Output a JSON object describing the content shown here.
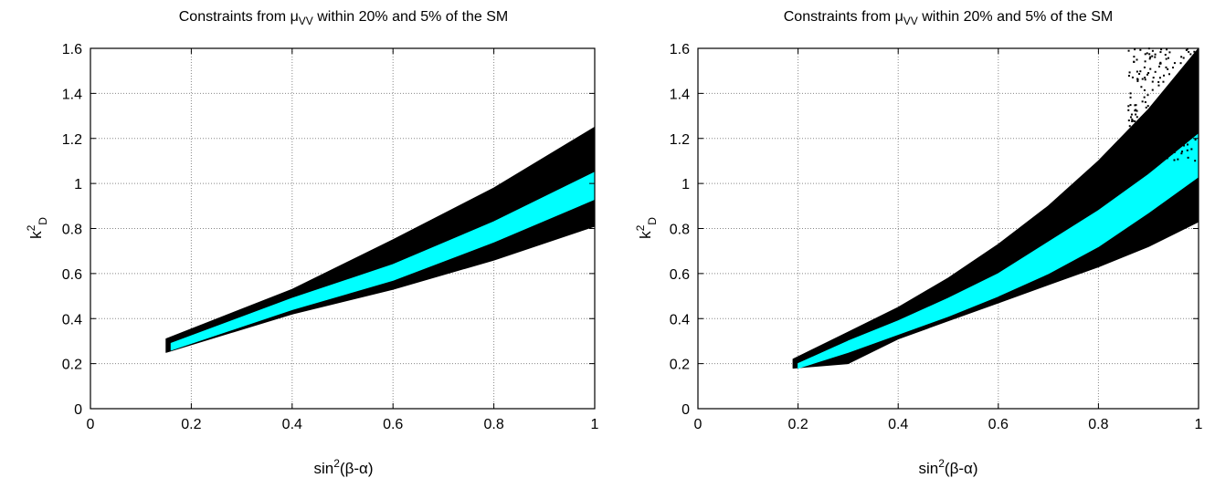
{
  "chart_data": [
    {
      "type": "area",
      "title": {
        "main": "Constraints from ",
        "mu": "μ",
        "sub": "VV",
        "rest": " within 20% and 5% of the SM"
      },
      "xlabel": {
        "pre": "sin",
        "sup": "2",
        "post": "(β-α)"
      },
      "ylabel": {
        "pre": "k",
        "sup": "2",
        "sub": "D"
      },
      "xlim": [
        0,
        1
      ],
      "ylim": [
        0,
        1.6
      ],
      "xticks": [
        "0",
        "0.2",
        "0.4",
        "0.6",
        "0.8",
        "1"
      ],
      "yticks": [
        "0",
        "0.2",
        "0.4",
        "0.6",
        "0.8",
        "1",
        "1.2",
        "1.4",
        "1.6"
      ],
      "grid": true,
      "colors": {
        "outer": "#000000",
        "inner": "#00ffff"
      },
      "series": [
        {
          "x": [
            0.15,
            0.4,
            0.6,
            0.8,
            1.0
          ],
          "upper": [
            0.31,
            0.53,
            0.75,
            0.98,
            1.25
          ],
          "lower": [
            0.25,
            0.42,
            0.53,
            0.66,
            0.81
          ]
        },
        {
          "x": [
            0.16,
            0.4,
            0.6,
            0.8,
            1.0
          ],
          "upper": [
            0.29,
            0.49,
            0.64,
            0.83,
            1.05
          ],
          "lower": [
            0.26,
            0.44,
            0.57,
            0.74,
            0.93
          ]
        }
      ]
    },
    {
      "type": "area",
      "title": {
        "main": "Constraints from ",
        "mu": "μ",
        "sub": "VV",
        "rest": " within 20% and 5% of the SM"
      },
      "xlabel": {
        "pre": "sin",
        "sup": "2",
        "post": "(β-α)"
      },
      "ylabel": {
        "pre": "k",
        "sup": "2",
        "sub": "D"
      },
      "xlim": [
        0,
        1
      ],
      "ylim": [
        0,
        1.6
      ],
      "xticks": [
        "0",
        "0.2",
        "0.4",
        "0.6",
        "0.8",
        "1"
      ],
      "yticks": [
        "0",
        "0.2",
        "0.4",
        "0.6",
        "0.8",
        "1",
        "1.2",
        "1.4",
        "1.6"
      ],
      "grid": true,
      "colors": {
        "outer": "#000000",
        "inner": "#00ffff"
      },
      "series": [
        {
          "x": [
            0.19,
            0.3,
            0.4,
            0.5,
            0.6,
            0.7,
            0.8,
            0.9,
            1.0
          ],
          "upper": [
            0.22,
            0.34,
            0.45,
            0.58,
            0.73,
            0.9,
            1.1,
            1.33,
            1.6
          ],
          "lower": [
            0.18,
            0.2,
            0.31,
            0.39,
            0.47,
            0.55,
            0.63,
            0.72,
            0.83
          ]
        },
        {
          "x": [
            0.2,
            0.3,
            0.4,
            0.5,
            0.6,
            0.7,
            0.8,
            0.9,
            1.0
          ],
          "upper": [
            0.2,
            0.3,
            0.39,
            0.49,
            0.6,
            0.74,
            0.88,
            1.04,
            1.22
          ],
          "lower": [
            0.18,
            0.25,
            0.33,
            0.41,
            0.5,
            0.6,
            0.72,
            0.87,
            1.03
          ]
        }
      ]
    }
  ]
}
